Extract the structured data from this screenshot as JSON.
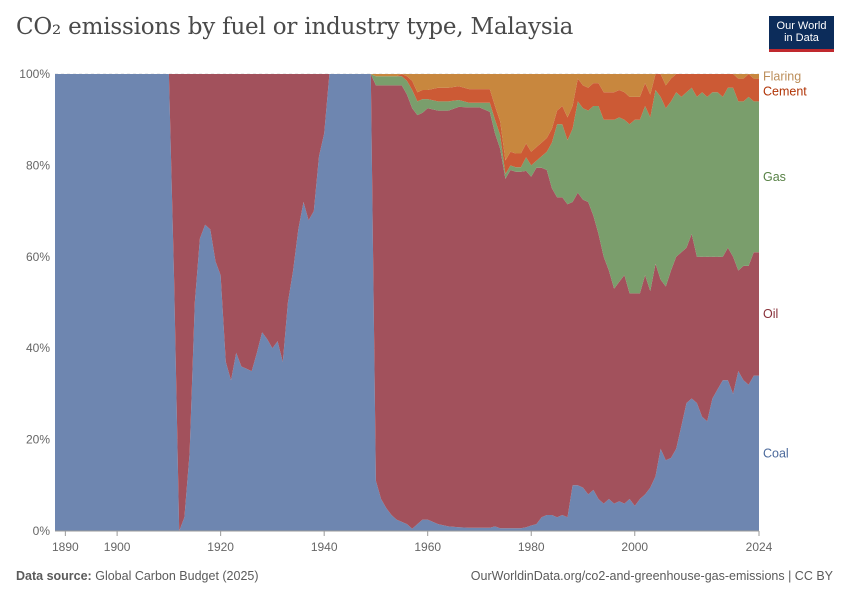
{
  "title": "CO₂ emissions by fuel or industry type, Malaysia",
  "logo": {
    "line1": "Our World",
    "line2": "in Data"
  },
  "footer": {
    "source_label": "Data source:",
    "source_text": "Global Carbon Budget (2025)",
    "url_license": "OurWorldinData.org/co2-and-greenhouse-gas-emissions | CC BY"
  },
  "colors": {
    "Coal": "#6e86b0",
    "Oil": "#a2515c",
    "Gas": "#7a9e6c",
    "Cement": "#cc5a35",
    "Flaring": "#c8873e",
    "label_Coal": "#4c6a9c",
    "label_Oil": "#883039",
    "label_Gas": "#578145",
    "label_Cement": "#b13507",
    "label_Flaring": "#bc8e5a"
  },
  "chart_data": {
    "type": "area",
    "stacked": "percent",
    "title": "CO₂ emissions by fuel or industry type, Malaysia",
    "xlim": [
      1888,
      2024
    ],
    "ylim": [
      0,
      100
    ],
    "x_ticks": [
      1890,
      1900,
      1920,
      1940,
      1960,
      1980,
      2000,
      2024
    ],
    "x_tick_labels": [
      "1890",
      "1900",
      "1920",
      "1940",
      "1960",
      "1980",
      "2000",
      "2024"
    ],
    "y_ticks": [
      0,
      20,
      40,
      60,
      80,
      100
    ],
    "y_tick_labels": [
      "0%",
      "20%",
      "40%",
      "60%",
      "80%",
      "100%"
    ],
    "grid": "horizontal",
    "legend": "right, inline labels",
    "x": [
      1888,
      1910,
      1911,
      1912,
      1913,
      1914,
      1915,
      1916,
      1917,
      1918,
      1919,
      1920,
      1921,
      1922,
      1923,
      1924,
      1925,
      1926,
      1927,
      1928,
      1929,
      1930,
      1931,
      1932,
      1933,
      1934,
      1935,
      1936,
      1937,
      1938,
      1939,
      1940,
      1941,
      1942,
      1943,
      1944,
      1945,
      1946,
      1947,
      1948,
      1949,
      1950,
      1951,
      1952,
      1953,
      1954,
      1955,
      1956,
      1957,
      1958,
      1959,
      1960,
      1962,
      1964,
      1966,
      1968,
      1970,
      1972,
      1973,
      1974,
      1975,
      1976,
      1977,
      1978,
      1979,
      1980,
      1981,
      1982,
      1983,
      1984,
      1985,
      1986,
      1987,
      1988,
      1989,
      1990,
      1991,
      1992,
      1993,
      1994,
      1995,
      1996,
      1997,
      1998,
      1999,
      2000,
      2001,
      2002,
      2003,
      2004,
      2005,
      2006,
      2007,
      2008,
      2009,
      2010,
      2011,
      2012,
      2013,
      2014,
      2015,
      2016,
      2017,
      2018,
      2019,
      2020,
      2021,
      2022,
      2023,
      2024
    ],
    "series": [
      {
        "name": "Coal",
        "values": [
          100,
          100,
          55,
          0,
          3,
          17,
          50,
          64,
          67,
          66,
          59,
          56,
          37,
          33,
          39,
          36,
          35.5,
          35,
          39,
          43.5,
          42,
          40,
          41.5,
          37,
          50,
          57,
          66,
          72,
          68,
          70,
          82,
          87,
          100,
          100,
          100,
          100,
          100,
          100,
          100,
          100,
          100,
          11,
          7,
          5,
          3.5,
          2.5,
          2,
          1.5,
          0.5,
          1.5,
          2.5,
          2.5,
          1.5,
          1,
          0.8,
          0.7,
          0.7,
          0.7,
          1,
          0.6,
          0.6,
          0.6,
          0.6,
          0.6,
          0.8,
          1.2,
          1.5,
          3,
          3.5,
          3.5,
          3,
          3.5,
          3,
          10,
          10,
          9.5,
          8,
          9,
          7,
          6,
          7,
          6,
          6.5,
          6,
          7,
          5.5,
          7,
          8,
          9.5,
          12,
          18,
          15.5,
          16,
          18,
          23,
          28,
          29,
          28,
          25,
          24,
          29,
          31,
          33,
          33,
          30,
          35,
          33,
          32,
          34,
          34
        ]
      },
      {
        "name": "Oil",
        "values": [
          0,
          0,
          45,
          100,
          97,
          83,
          50,
          36,
          33,
          34,
          41,
          44,
          63,
          67,
          61,
          64,
          64.5,
          65,
          61,
          56.5,
          58,
          60,
          58.5,
          63,
          50,
          43,
          34,
          28,
          32,
          30,
          18,
          13,
          0,
          0,
          0,
          0,
          0,
          0,
          0,
          0,
          0,
          86.5,
          90.5,
          92.5,
          94,
          95,
          95.5,
          94,
          92,
          89.5,
          89,
          90,
          90.5,
          91,
          92,
          92,
          92,
          91,
          86,
          83,
          76.5,
          78.4,
          78,
          78,
          78,
          76.3,
          78,
          76.5,
          75.5,
          71.5,
          70,
          69.5,
          68.5,
          62,
          64,
          63,
          64,
          60,
          58,
          54,
          50,
          47,
          48,
          50,
          45,
          46.5,
          45,
          48,
          43,
          46.5,
          37,
          38,
          41,
          42,
          38,
          34,
          36,
          32,
          35,
          36,
          31,
          29,
          27,
          29,
          30,
          22,
          25,
          26,
          27,
          27
        ]
      },
      {
        "name": "Gas",
        "values": [
          0,
          0,
          0,
          0,
          0,
          0,
          0,
          0,
          0,
          0,
          0,
          0,
          0,
          0,
          0,
          0,
          0,
          0,
          0,
          0,
          0,
          0,
          0,
          0,
          0,
          0,
          0,
          0,
          0,
          0,
          0,
          0,
          0,
          0,
          0,
          0,
          0,
          0,
          0,
          0,
          0,
          2,
          2,
          2,
          2,
          2,
          2,
          3,
          4,
          3,
          3,
          2,
          2,
          2,
          1.5,
          1,
          1,
          2,
          3,
          3,
          1,
          1,
          1,
          1,
          3,
          2.5,
          1.5,
          2.5,
          4,
          10,
          16,
          16,
          14,
          16,
          20,
          20,
          20,
          24,
          28,
          30,
          33,
          37,
          36,
          34,
          37,
          38,
          38,
          37,
          38,
          38,
          40,
          39,
          37,
          36,
          34,
          34,
          32,
          35,
          36,
          35,
          36,
          36,
          35,
          35,
          37,
          37,
          36,
          37,
          33,
          33
        ]
      },
      {
        "name": "Cement",
        "values": [
          0,
          0,
          0,
          0,
          0,
          0,
          0,
          0,
          0,
          0,
          0,
          0,
          0,
          0,
          0,
          0,
          0,
          0,
          0,
          0,
          0,
          0,
          0,
          0,
          0,
          0,
          0,
          0,
          0,
          0,
          0,
          0,
          0,
          0,
          0,
          0,
          0,
          0,
          0,
          0,
          0,
          0,
          0,
          0,
          0,
          0,
          0.5,
          1,
          2,
          2,
          2,
          2,
          3,
          3,
          3,
          3,
          3,
          3,
          3,
          3,
          3,
          3,
          3,
          3,
          3,
          3,
          3,
          3,
          3,
          3,
          3,
          4,
          5,
          5,
          5,
          5,
          5,
          5,
          5,
          6,
          6,
          6,
          6,
          6,
          6,
          5,
          5,
          5,
          5,
          5,
          5,
          5,
          5,
          5,
          5,
          5,
          5,
          5,
          5,
          5,
          5,
          5,
          5,
          5,
          5,
          5,
          5,
          5,
          5,
          5
        ]
      },
      {
        "name": "Flaring",
        "values": [
          0,
          0,
          0,
          0,
          0,
          0,
          0,
          0,
          0,
          0,
          0,
          0,
          0,
          0,
          0,
          0,
          0,
          0,
          0,
          0,
          0,
          0,
          0,
          0,
          0,
          0,
          0,
          0,
          0,
          0,
          0,
          0,
          0,
          0,
          0,
          0,
          0,
          0,
          0,
          0,
          0,
          0.5,
          0.5,
          0.5,
          0.5,
          0.5,
          0,
          0.5,
          1.5,
          4,
          3.5,
          3.5,
          3,
          3,
          2.7,
          3.3,
          3.3,
          3.3,
          7,
          10.4,
          18.9,
          17,
          17.4,
          17.4,
          15.2,
          17.5,
          16,
          15.5,
          14,
          12,
          8,
          7,
          9.5,
          7,
          1,
          2.5,
          3,
          2,
          2,
          4,
          4,
          4,
          3.5,
          4,
          5,
          5,
          5,
          2,
          4.5,
          2.5,
          0,
          3,
          1,
          -1,
          0,
          -1,
          -2,
          0,
          -1,
          0,
          -1,
          -1,
          0,
          -2,
          -2,
          1,
          1,
          0,
          1,
          1
        ]
      }
    ],
    "series_labels": [
      "Flaring",
      "Cement",
      "Gas",
      "Oil",
      "Coal"
    ]
  }
}
